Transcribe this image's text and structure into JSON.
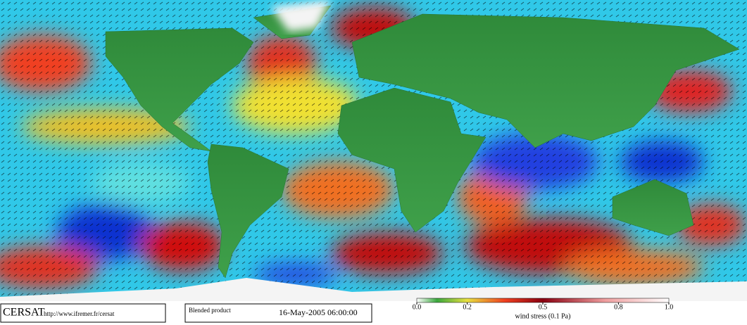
{
  "footer": {
    "logo": "CERSAT",
    "url": "http://www.ifremer.fr/cersat",
    "product": "Blended product",
    "datetime": "16-May-2005 06:00:00"
  },
  "colorbar": {
    "range": [
      0,
      1
    ],
    "ticks": [
      {
        "value": 0,
        "label": "0.0"
      },
      {
        "value": 0.2,
        "label": "0.2"
      },
      {
        "value": 0.5,
        "label": "0.5"
      },
      {
        "value": 0.8,
        "label": "0.8"
      },
      {
        "value": 1,
        "label": "1.0"
      }
    ],
    "title": "wind stress (0.1 Pa)"
  }
}
